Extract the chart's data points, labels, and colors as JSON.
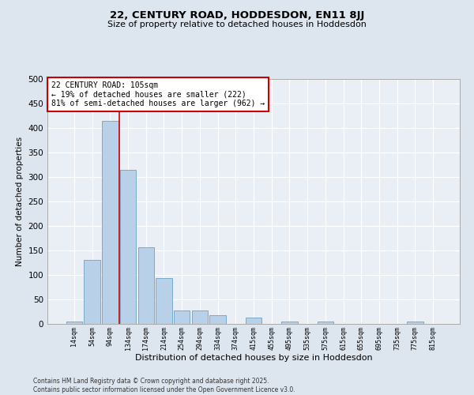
{
  "title_line1": "22, CENTURY ROAD, HODDESDON, EN11 8JJ",
  "title_line2": "Size of property relative to detached houses in Hoddesdon",
  "xlabel": "Distribution of detached houses by size in Hoddesdon",
  "ylabel": "Number of detached properties",
  "categories": [
    "14sqm",
    "54sqm",
    "94sqm",
    "134sqm",
    "174sqm",
    "214sqm",
    "254sqm",
    "294sqm",
    "334sqm",
    "374sqm",
    "415sqm",
    "455sqm",
    "495sqm",
    "535sqm",
    "575sqm",
    "615sqm",
    "655sqm",
    "695sqm",
    "735sqm",
    "775sqm",
    "815sqm"
  ],
  "values": [
    5,
    131,
    415,
    315,
    157,
    93,
    28,
    28,
    18,
    0,
    13,
    0,
    5,
    0,
    5,
    0,
    0,
    0,
    0,
    5,
    0
  ],
  "bar_color": "#b8d0e8",
  "bar_edge_color": "#7aaac8",
  "vline_x": 2.5,
  "vline_color": "#cc0000",
  "annotation_text": "22 CENTURY ROAD: 105sqm\n← 19% of detached houses are smaller (222)\n81% of semi-detached houses are larger (962) →",
  "annotation_box_color": "#ffffff",
  "annotation_box_edgecolor": "#cc0000",
  "annotation_fontsize": 7,
  "bg_color": "#dde5ef",
  "plot_bg_color": "#eaeff6",
  "grid_color": "#ffffff",
  "footnote": "Contains HM Land Registry data © Crown copyright and database right 2025.\nContains public sector information licensed under the Open Government Licence v3.0.",
  "ylim": [
    0,
    500
  ],
  "yticks": [
    0,
    50,
    100,
    150,
    200,
    250,
    300,
    350,
    400,
    450,
    500
  ],
  "title_fontsize": 9.5,
  "subtitle_fontsize": 8,
  "ylabel_fontsize": 7.5,
  "xlabel_fontsize": 8
}
